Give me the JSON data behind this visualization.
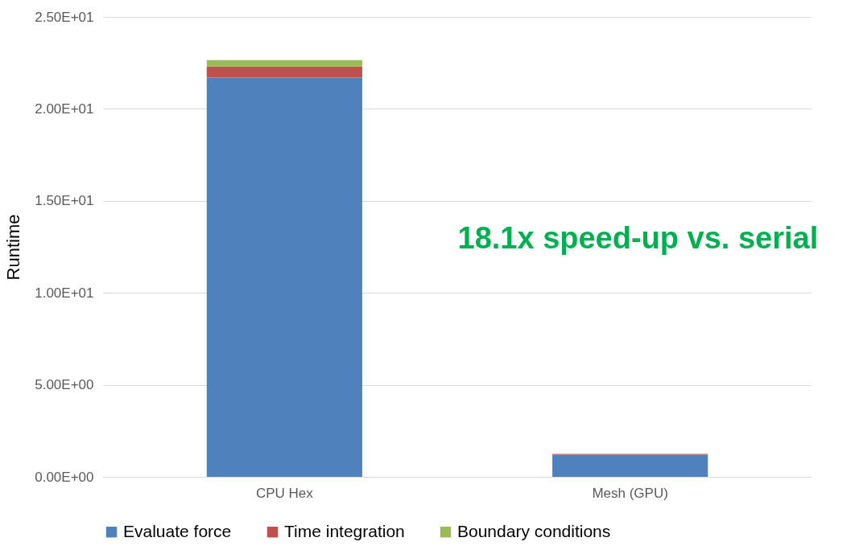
{
  "chart_data": {
    "type": "bar",
    "stacked": true,
    "ylabel": "Runtime",
    "categories": [
      "CPU Hex",
      "Mesh (GPU)"
    ],
    "series": [
      {
        "name": "Evaluate force",
        "color": "#4f81bd",
        "values": [
          21.7,
          1.2
        ]
      },
      {
        "name": "Time integration",
        "color": "#c0504d",
        "values": [
          0.6,
          0.05
        ]
      },
      {
        "name": "Boundary conditions",
        "color": "#9bbb59",
        "values": [
          0.35,
          null
        ]
      }
    ],
    "ylim": [
      0,
      25
    ],
    "yticks": [
      {
        "value": 0,
        "label": "0.00E+00"
      },
      {
        "value": 5,
        "label": "5.00E+00"
      },
      {
        "value": 10,
        "label": "1.00E+01"
      },
      {
        "value": 15,
        "label": "1.50E+01"
      },
      {
        "value": 20,
        "label": "2.00E+01"
      },
      {
        "value": 25,
        "label": "2.50E+01"
      }
    ],
    "grid": "y",
    "legend": "bottom",
    "annotations": [
      "18.1x speed-up vs. serial"
    ]
  }
}
